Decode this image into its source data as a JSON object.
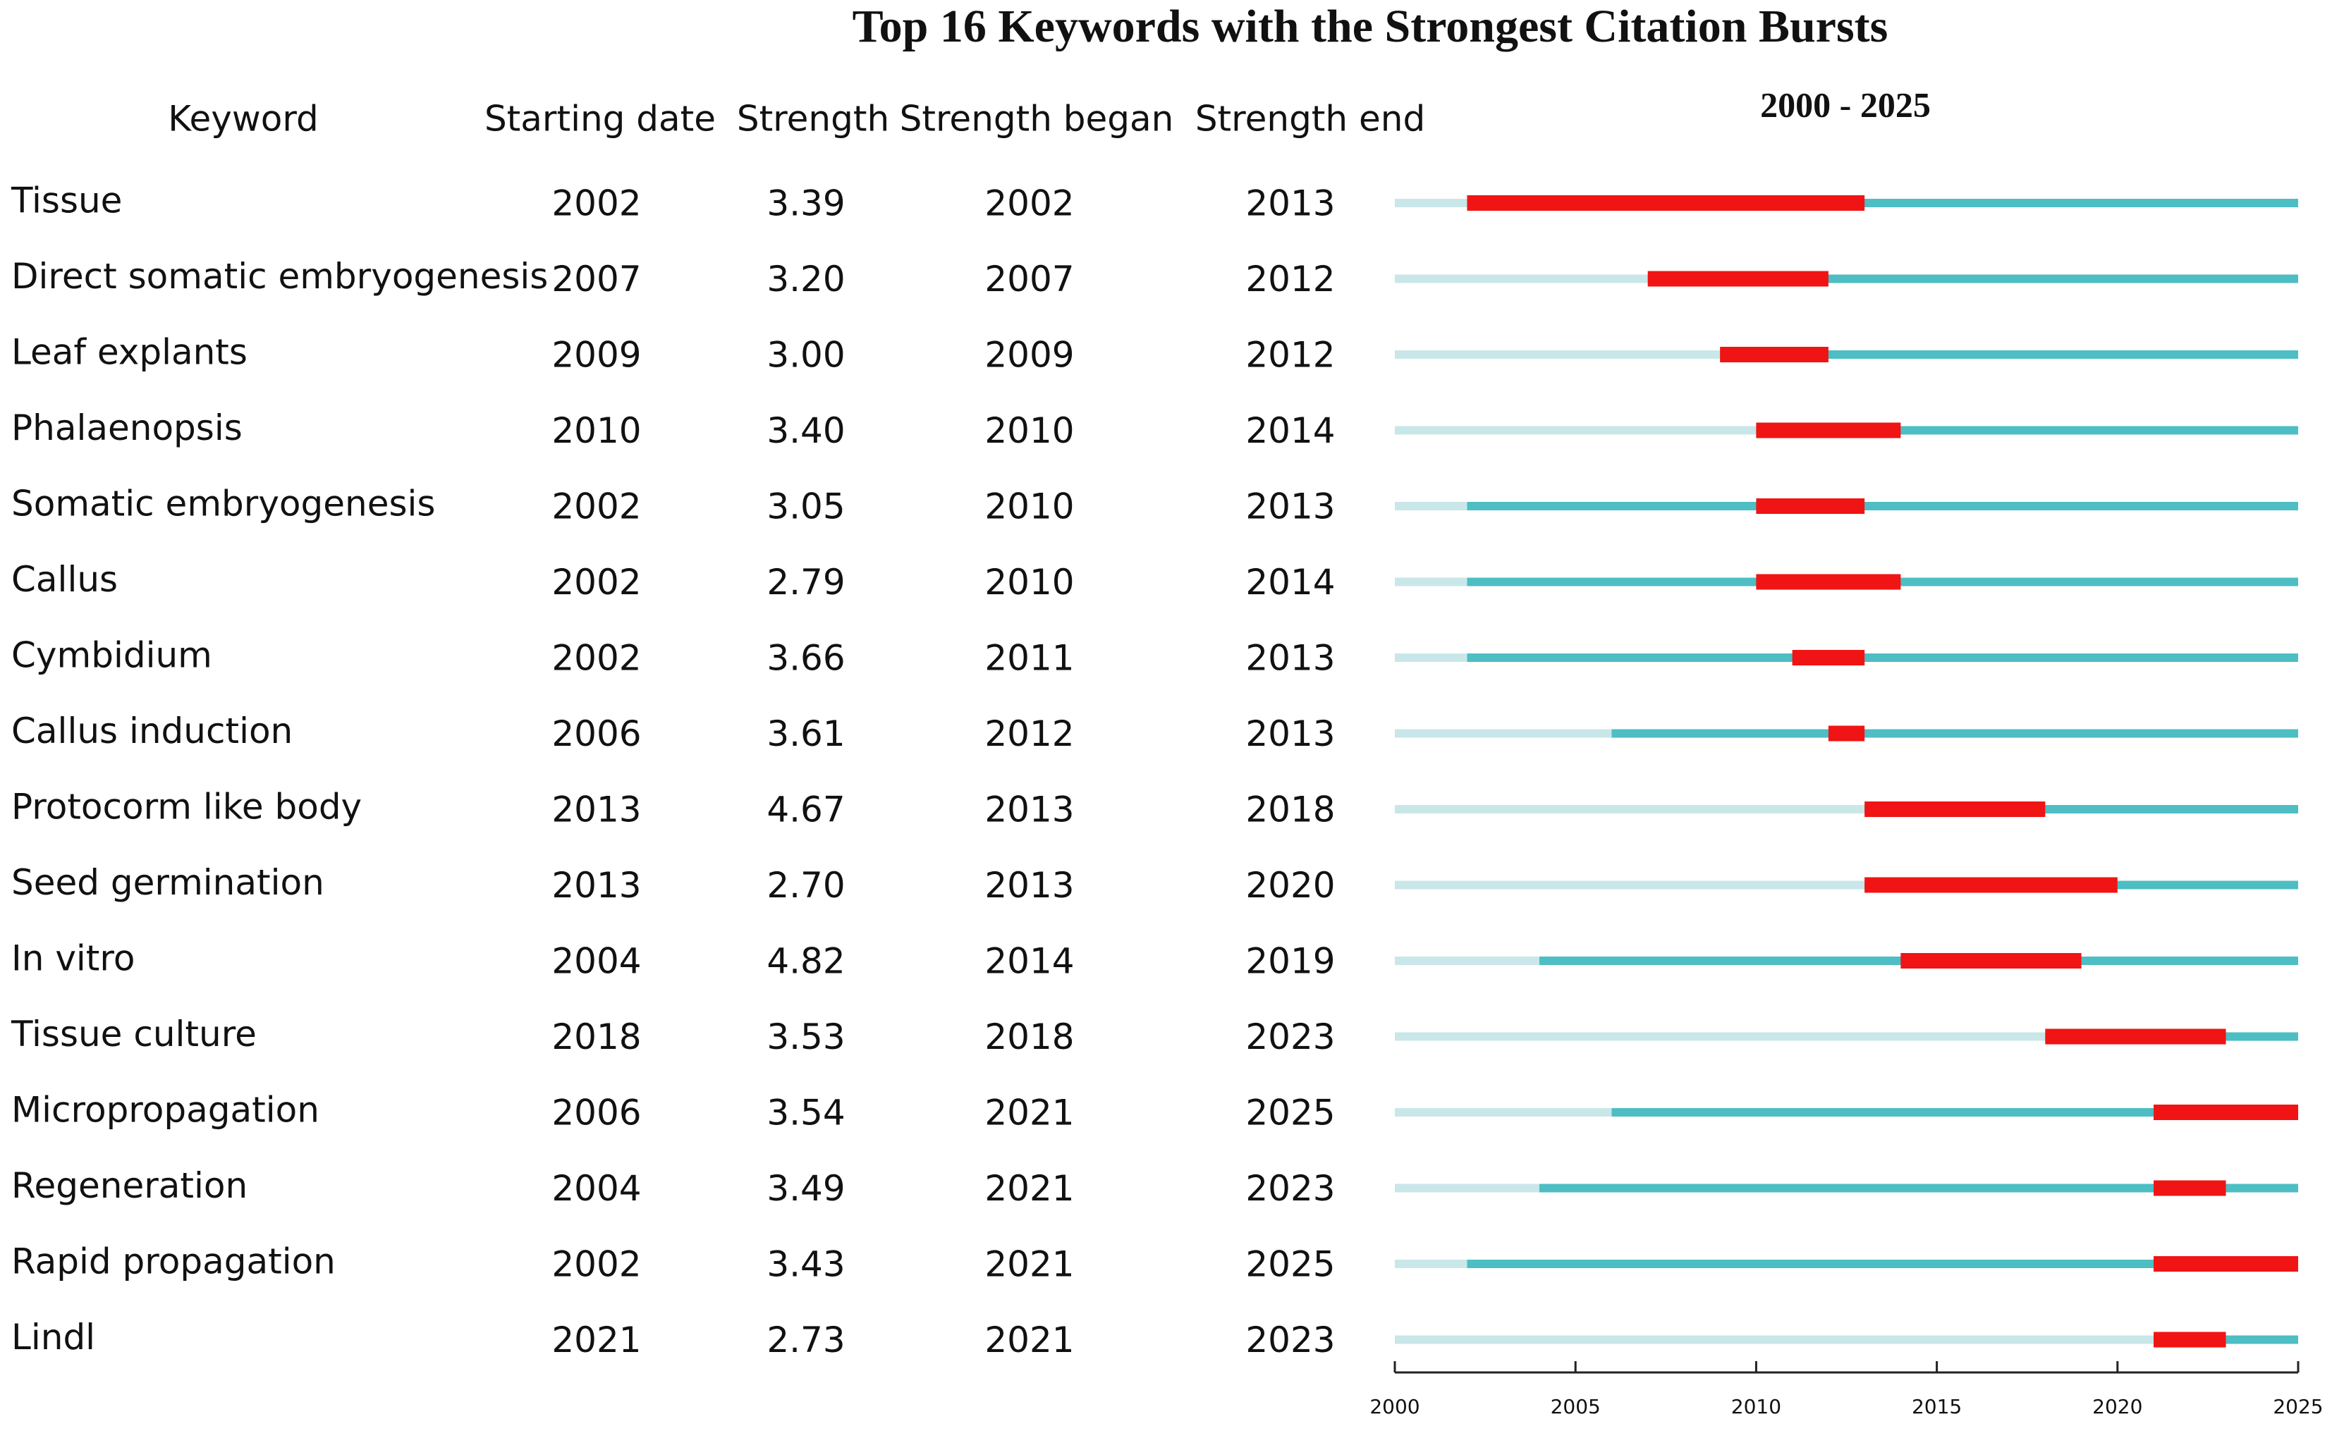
{
  "chart_data": {
    "type": "burst",
    "title": "Top 16 Keywords with the Strongest Citation Bursts",
    "range_label": "2000 - 2025",
    "columns": [
      "Keyword",
      "Starting date",
      "Strength",
      "Strength began",
      "Strength end"
    ],
    "keywords": [
      "Tissue",
      "Direct somatic embryogenesis",
      "Leaf explants",
      "Phalaenopsis",
      "Somatic embryogenesis",
      "Callus",
      "Cymbidium",
      "Callus induction",
      "Protocorm like body",
      "Seed germination",
      "In vitro",
      "Tissue culture",
      "Micropropagation",
      "Regeneration",
      "Rapid propagation",
      "Lindl"
    ],
    "start": [
      2002,
      2007,
      2009,
      2010,
      2002,
      2002,
      2002,
      2006,
      2013,
      2013,
      2004,
      2018,
      2006,
      2004,
      2002,
      2021
    ],
    "strength": [
      "3.39",
      "3.20",
      "3.00",
      "3.40",
      "3.05",
      "2.79",
      "3.66",
      "3.61",
      "4.67",
      "2.70",
      "4.82",
      "3.53",
      "3.54",
      "3.49",
      "3.43",
      "2.73"
    ],
    "begin": [
      2002,
      2007,
      2009,
      2010,
      2010,
      2010,
      2011,
      2012,
      2013,
      2013,
      2014,
      2018,
      2021,
      2021,
      2021,
      2021
    ],
    "end": [
      2013,
      2012,
      2012,
      2014,
      2013,
      2014,
      2013,
      2013,
      2018,
      2020,
      2019,
      2023,
      2025,
      2023,
      2025,
      2023
    ],
    "xlim": [
      2000,
      2025
    ],
    "xticks": [
      2000,
      2005,
      2010,
      2015,
      2020,
      2025
    ],
    "colors": {
      "before": "#c9e7e9",
      "active": "#4dbec3",
      "burst": "#f01414"
    }
  }
}
